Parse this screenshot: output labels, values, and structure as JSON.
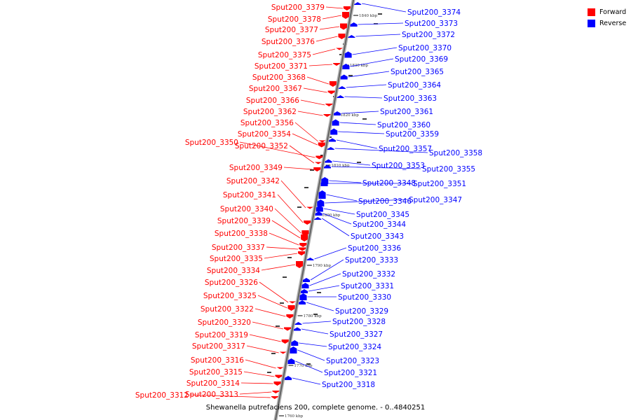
{
  "caption": "Shewanella putrefaciens 200, complete genome. - 0..4840251",
  "legend": {
    "forward": {
      "label": "Forward",
      "color": "#ff0000"
    },
    "reverse": {
      "label": "Reverse",
      "color": "#0000ff"
    }
  },
  "scale_ticks": [
    "1840 kbp",
    "1830 kbp",
    "1820 kbp",
    "1810 kbp",
    "1800 kbp",
    "1790 kbp",
    "1780 kbp",
    "1770 kbp",
    "1760 kbp"
  ],
  "forward_genes": [
    "Sput200_3379",
    "Sput200_3378",
    "Sput200_3377",
    "Sput200_3376",
    "Sput200_3375",
    "Sput200_3371",
    "Sput200_3368",
    "Sput200_3367",
    "Sput200_3366",
    "Sput200_3362",
    "Sput200_3356",
    "Sput200_3354",
    "Sput200_3350",
    "Sput200_3352",
    "Sput200_3349",
    "Sput200_3342",
    "Sput200_3341",
    "Sput200_3340",
    "Sput200_3339",
    "Sput200_3338",
    "Sput200_3337",
    "Sput200_3335",
    "Sput200_3334",
    "Sput200_3326",
    "Sput200_3325",
    "Sput200_3322",
    "Sput200_3320",
    "Sput200_3319",
    "Sput200_3317",
    "Sput200_3316",
    "Sput200_3315",
    "Sput200_3314",
    "Sput200_3313",
    "Sput200_3312"
  ],
  "reverse_genes": [
    "Sput200_3374",
    "Sput200_3373",
    "Sput200_3372",
    "Sput200_3370",
    "Sput200_3369",
    "Sput200_3365",
    "Sput200_3364",
    "Sput200_3363",
    "Sput200_3361",
    "Sput200_3360",
    "Sput200_3359",
    "Sput200_3357",
    "Sput200_3358",
    "Sput200_3353",
    "Sput200_3355",
    "Sput200_3348",
    "Sput200_3351",
    "Sput200_3346",
    "Sput200_3347",
    "Sput200_3345",
    "Sput200_3344",
    "Sput200_3343",
    "Sput200_3336",
    "Sput200_3333",
    "Sput200_3332",
    "Sput200_3331",
    "Sput200_3330",
    "Sput200_3329",
    "Sput200_3328",
    "Sput200_3327",
    "Sput200_3324",
    "Sput200_3323",
    "Sput200_3321",
    "Sput200_3318"
  ]
}
